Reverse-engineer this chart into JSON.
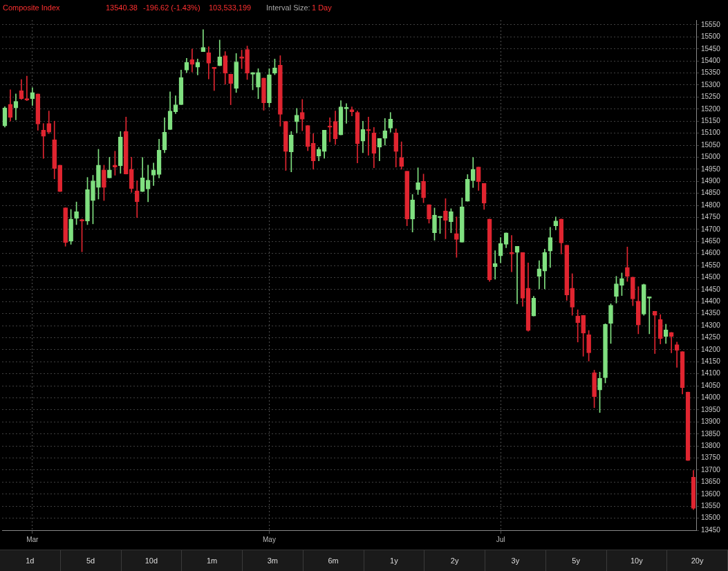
{
  "chart_data": {
    "type": "candlestick",
    "title": "Composite Index",
    "annotations": [
      "13540.38",
      "-196.62 (-1.43%)",
      "103,533,199",
      "Interval Size:",
      "1 Day",
      "1d",
      "5d",
      "10d",
      "1m",
      "3m",
      "6m",
      "1y",
      "2y",
      "3y",
      "5y",
      "10y",
      "20y"
    ],
    "categories": [
      null,
      null,
      null,
      null,
      null,
      "Mar",
      null,
      null,
      null,
      null,
      null,
      null,
      null,
      null,
      null,
      null,
      null,
      null,
      null,
      null,
      null,
      null,
      null,
      null,
      null,
      null,
      null,
      null,
      null,
      null,
      null,
      null,
      null,
      null,
      null,
      null,
      null,
      null,
      null,
      null,
      null,
      null,
      null,
      null,
      null,
      null,
      null,
      null,
      "May",
      null,
      null,
      null,
      null,
      null,
      null,
      null,
      null,
      null,
      null,
      null,
      null,
      null,
      null,
      null,
      null,
      null,
      null,
      null,
      null,
      null,
      null,
      null,
      null,
      null,
      null,
      null,
      null,
      null,
      null,
      null,
      null,
      null,
      null,
      null,
      null,
      null,
      null,
      null,
      null,
      null,
      "Jul",
      null,
      null,
      null,
      null,
      null,
      null,
      null,
      null,
      null,
      null,
      null,
      null,
      null,
      null,
      null,
      null,
      null,
      null,
      null,
      null,
      null,
      null,
      null,
      null,
      null,
      null,
      null,
      null,
      null,
      null,
      null,
      null,
      null,
      null,
      null
    ],
    "ohlc": [
      [
        15130,
        15210,
        15125,
        15205
      ],
      [
        15220,
        15280,
        15150,
        15165
      ],
      [
        15205,
        15263,
        15155,
        15232
      ],
      [
        15277,
        15323,
        15240,
        15243
      ],
      [
        15238,
        15337,
        15235,
        15238
      ],
      [
        15243,
        15289,
        15215,
        15269
      ],
      [
        15263,
        15263,
        15112,
        15138
      ],
      [
        15112,
        15140,
        14995,
        15087
      ],
      [
        15140,
        15192,
        15098,
        15104
      ],
      [
        15073,
        15150,
        14910,
        14953
      ],
      [
        14967,
        14967,
        14857,
        14857
      ],
      [
        14790,
        14790,
        14630,
        14645
      ],
      [
        14652,
        14783,
        14638,
        14743
      ],
      [
        14746,
        14814,
        14720,
        14774
      ],
      [
        14735,
        14743,
        14607,
        14735
      ],
      [
        14735,
        14916,
        14720,
        14865
      ],
      [
        14820,
        14925,
        14723,
        14902
      ],
      [
        14874,
        15033,
        14826,
        14967
      ],
      [
        14947,
        14967,
        14820,
        14874
      ],
      [
        14914,
        15000,
        14914,
        14947
      ],
      [
        14967,
        15025,
        14925,
        14959
      ],
      [
        14964,
        15107,
        14933,
        15084
      ],
      [
        15107,
        15167,
        14930,
        14930
      ],
      [
        14950,
        15000,
        14854,
        14870
      ],
      [
        14860,
        14902,
        14749,
        14815
      ],
      [
        14857,
        14999,
        14857,
        14914
      ],
      [
        14868,
        14967,
        14815,
        14905
      ],
      [
        14925,
        14976,
        14882,
        14947
      ],
      [
        14928,
        15075,
        14914,
        15030
      ],
      [
        15030,
        15164,
        15019,
        15104
      ],
      [
        15115,
        15272,
        15115,
        15192
      ],
      [
        15189,
        15255,
        15181,
        15218
      ],
      [
        15218,
        15362,
        15218,
        15331
      ],
      [
        15362,
        15411,
        15351,
        15394
      ],
      [
        15405,
        15450,
        15354,
        15386
      ],
      [
        15374,
        15408,
        15342,
        15394
      ],
      [
        15439,
        15530,
        15439,
        15456
      ],
      [
        15434,
        15459,
        15325,
        15391
      ],
      [
        15368,
        15371,
        15277,
        15368
      ],
      [
        15380,
        15487,
        15380,
        15417
      ],
      [
        15422,
        15439,
        15303,
        15349
      ],
      [
        15345,
        15345,
        15218,
        15306
      ],
      [
        15286,
        15431,
        15269,
        15396
      ],
      [
        15411,
        15445,
        15368,
        15411
      ],
      [
        15448,
        15462,
        15323,
        15349
      ],
      [
        15345,
        15352,
        15280,
        15352
      ],
      [
        15291,
        15368,
        15243,
        15352
      ],
      [
        15329,
        15329,
        15195,
        15226
      ],
      [
        15226,
        15368,
        15209,
        15343
      ],
      [
        15349,
        15408,
        15343,
        15371
      ],
      [
        15382,
        15422,
        15129,
        15178
      ],
      [
        15149,
        15149,
        14945,
        15024
      ],
      [
        15022,
        15107,
        14939,
        15093
      ],
      [
        15147,
        15203,
        15101,
        15175
      ],
      [
        15186,
        15240,
        15110,
        15158
      ],
      [
        15132,
        15132,
        15027,
        15044
      ],
      [
        15058,
        15098,
        14950,
        14985
      ],
      [
        15005,
        15041,
        14985,
        15033
      ],
      [
        15024,
        15112,
        14996,
        15112
      ],
      [
        15124,
        15164,
        15064,
        15124
      ],
      [
        15149,
        15192,
        15053,
        15076
      ],
      [
        15093,
        15235,
        15093,
        15209
      ],
      [
        15201,
        15223,
        15141,
        15206
      ],
      [
        15198,
        15209,
        15172,
        15189
      ],
      [
        15186,
        15192,
        14976,
        15056
      ],
      [
        15067,
        15150,
        15019,
        15115
      ],
      [
        15115,
        15167,
        15008,
        15110
      ],
      [
        15101,
        15124,
        14956,
        15016
      ],
      [
        15042,
        15078,
        14985,
        15078
      ],
      [
        15078,
        15161,
        15050,
        15110
      ],
      [
        15121,
        15186,
        15104,
        15158
      ],
      [
        15101,
        15118,
        14959,
        15024
      ],
      [
        14999,
        15064,
        14950,
        14962
      ],
      [
        14942,
        14942,
        14715,
        14743
      ],
      [
        14743,
        14845,
        14689,
        14823
      ],
      [
        14865,
        14956,
        14845,
        14894
      ],
      [
        14900,
        14930,
        14811,
        14831
      ],
      [
        14803,
        14803,
        14726,
        14743
      ],
      [
        14686,
        14789,
        14655,
        14760
      ],
      [
        14749,
        14754,
        14683,
        14754
      ],
      [
        14777,
        14828,
        14661,
        14738
      ],
      [
        14732,
        14786,
        14686,
        14774
      ],
      [
        14683,
        14752,
        14584,
        14658
      ],
      [
        14647,
        14831,
        14647,
        14794
      ],
      [
        14817,
        14928,
        14817,
        14908
      ],
      [
        14902,
        14999,
        14874,
        14950
      ],
      [
        14959,
        14959,
        14862,
        14899
      ],
      [
        14891,
        14891,
        14783,
        14809
      ],
      [
        14743,
        14743,
        14484,
        14490
      ],
      [
        14545,
        14612,
        14493,
        14558
      ],
      [
        14590,
        14666,
        14561,
        14641
      ],
      [
        14638,
        14686,
        14624,
        14686
      ],
      [
        14598,
        14675,
        14524,
        14598
      ],
      [
        14604,
        14630,
        14391,
        14630
      ],
      [
        14604,
        14604,
        14380,
        14414
      ],
      [
        14456,
        14561,
        14277,
        14280
      ],
      [
        14340,
        14422,
        14340,
        14414
      ],
      [
        14505,
        14570,
        14453,
        14536
      ],
      [
        14527,
        14618,
        14453,
        14604
      ],
      [
        14610,
        14709,
        14542,
        14666
      ],
      [
        14715,
        14752,
        14698,
        14735
      ],
      [
        14743,
        14743,
        14598,
        14644
      ],
      [
        14635,
        14635,
        14405,
        14428
      ],
      [
        14456,
        14516,
        14343,
        14377
      ],
      [
        14340,
        14366,
        14232,
        14312
      ],
      [
        14343,
        14343,
        14173,
        14269
      ],
      [
        14263,
        14280,
        14153,
        14187
      ],
      [
        14105,
        14115,
        13959,
        14005
      ],
      [
        14033,
        14107,
        13939,
        14081
      ],
      [
        14084,
        14308,
        14062,
        14306
      ],
      [
        14309,
        14391,
        14226,
        14385
      ],
      [
        14422,
        14505,
        14394,
        14474
      ],
      [
        14468,
        14519,
        14425,
        14496
      ],
      [
        14542,
        14627,
        14484,
        14505
      ],
      [
        14502,
        14502,
        14383,
        14411
      ],
      [
        14402,
        14462,
        14266,
        14303
      ],
      [
        14348,
        14473,
        14343,
        14471
      ],
      [
        14414,
        14417,
        14266,
        14417
      ],
      [
        14360,
        14360,
        14184,
        14343
      ],
      [
        14326,
        14346,
        14224,
        14247
      ],
      [
        14255,
        14306,
        14226,
        14283
      ],
      [
        14272,
        14272,
        14187,
        14255
      ],
      [
        14221,
        14232,
        14127,
        14198
      ],
      [
        14192,
        14192,
        14016,
        14042
      ],
      [
        14024,
        14024,
        13740,
        13740
      ],
      [
        13670,
        13698,
        13536,
        13540.38
      ]
    ],
    "colors": [
      "#80e080",
      "#e02530",
      "#80e080",
      "#e02530",
      "#e02530",
      "#80e080",
      "#e02530",
      "#e02530",
      "#e02530",
      "#e02530",
      "#e02530",
      "#e02530",
      "#80e080",
      "#80e080",
      "#e02530",
      "#80e080",
      "#80e080",
      "#80e080",
      "#e02530",
      "#80e080",
      "#e02530",
      "#80e080",
      "#e02530",
      "#e02530",
      "#e02530",
      "#80e080",
      "#80e080",
      "#80e080",
      "#80e080",
      "#80e080",
      "#80e080",
      "#80e080",
      "#80e080",
      "#80e080",
      "#e02530",
      "#80e080",
      "#80e080",
      "#e02530",
      "#e02530",
      "#80e080",
      "#e02530",
      "#e02530",
      "#80e080",
      "#e02530",
      "#e02530",
      "#80e080",
      "#80e080",
      "#e02530",
      "#80e080",
      "#80e080",
      "#e02530",
      "#e02530",
      "#80e080",
      "#80e080",
      "#e02530",
      "#e02530",
      "#e02530",
      "#80e080",
      "#80e080",
      "#e02530",
      "#e02530",
      "#80e080",
      "#80e080",
      "#e02530",
      "#e02530",
      "#80e080",
      "#e02530",
      "#e02530",
      "#80e080",
      "#80e080",
      "#80e080",
      "#e02530",
      "#e02530",
      "#e02530",
      "#80e080",
      "#80e080",
      "#e02530",
      "#e02530",
      "#80e080",
      "#80e080",
      "#e02530",
      "#80e080",
      "#e02530",
      "#80e080",
      "#80e080",
      "#80e080",
      "#e02530",
      "#e02530",
      "#e02530",
      "#80e080",
      "#80e080",
      "#80e080",
      "#e02530",
      "#80e080",
      "#e02530",
      "#e02530",
      "#80e080",
      "#80e080",
      "#80e080",
      "#80e080",
      "#80e080",
      "#e02530",
      "#e02530",
      "#e02530",
      "#e02530",
      "#e02530",
      "#e02530",
      "#e02530",
      "#80e080",
      "#80e080",
      "#80e080",
      "#80e080",
      "#80e080",
      "#e02530",
      "#e02530",
      "#e02530",
      "#80e080",
      "#80e080",
      "#e02530",
      "#e02530",
      "#80e080",
      "#e02530",
      "#e02530",
      "#e02530",
      "#e02530",
      "#e02530"
    ],
    "ylim": [
      13450,
      15570
    ],
    "yticks": [
      13450,
      13500,
      13550,
      13600,
      13650,
      13700,
      13750,
      13800,
      13850,
      13900,
      13950,
      14000,
      14050,
      14100,
      14150,
      14200,
      14250,
      14300,
      14350,
      14400,
      14450,
      14500,
      14550,
      14600,
      14650,
      14700,
      14750,
      14800,
      14850,
      14900,
      14950,
      15000,
      15050,
      15100,
      15150,
      15200,
      15250,
      15300,
      15350,
      15400,
      15450,
      15500,
      15550
    ],
    "grid": true,
    "legend": false
  }
}
